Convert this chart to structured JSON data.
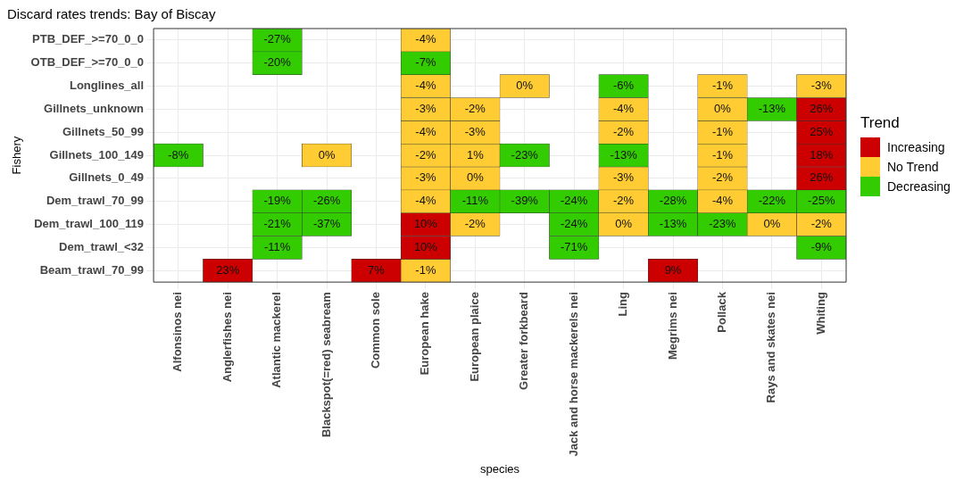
{
  "chart_data": {
    "type": "heatmap",
    "title": "Discard rates trends: Bay of Biscay",
    "xlabel": "species",
    "ylabel": "Fishery",
    "legend_title": "Trend",
    "legend": "right",
    "grid": true,
    "categories": [
      "Alfonsinos nei",
      "Anglerfishes nei",
      "Atlantic mackerel",
      "Blackspot(=red) seabream",
      "Common sole",
      "European hake",
      "European plaice",
      "Greater forkbeard",
      "Jack and horse mackerels nei",
      "Ling",
      "Megrims nei",
      "Pollack",
      "Rays and skates nei",
      "Whiting"
    ],
    "y_categories": [
      "PTB_DEF_>=70_0_0",
      "OTB_DEF_>=70_0_0",
      "Longlines_all",
      "Gillnets_unknown",
      "Gillnets_50_99",
      "Gillnets_100_149",
      "Gillnets_0_49",
      "Dem_trawl_70_99",
      "Dem_trawl_100_119",
      "Dem_trawl_<32",
      "Beam_trawl_70_99"
    ],
    "series": [
      {
        "name": "Increasing",
        "color": "#cc0000",
        "values": [
          null,
          null,
          null,
          null,
          null,
          null,
          null,
          null,
          null,
          null,
          null,
          null,
          null,
          null
        ]
      },
      {
        "name": "No Trend",
        "color": "#ffcc33",
        "values": [
          null,
          null,
          null,
          null,
          null,
          null,
          null,
          null,
          null,
          null,
          null,
          null,
          null,
          null
        ]
      },
      {
        "name": "Decreasing",
        "color": "#33cc00",
        "values": [
          null,
          null,
          null,
          null,
          null,
          null,
          null,
          null,
          null,
          null,
          null,
          null,
          null,
          null
        ]
      }
    ],
    "cells": [
      [
        null,
        null,
        -27,
        null,
        null,
        -4,
        null,
        null,
        null,
        null,
        null,
        null,
        null,
        null
      ],
      [
        null,
        null,
        -20,
        null,
        null,
        -7,
        null,
        null,
        null,
        null,
        null,
        null,
        null,
        null
      ],
      [
        null,
        null,
        null,
        null,
        null,
        -4,
        null,
        0,
        null,
        -6,
        null,
        -1,
        null,
        -3
      ],
      [
        null,
        null,
        null,
        null,
        null,
        -3,
        -2,
        null,
        null,
        -4,
        null,
        0,
        -13,
        26
      ],
      [
        null,
        null,
        null,
        null,
        null,
        -4,
        -3,
        null,
        null,
        -2,
        null,
        -1,
        null,
        25
      ],
      [
        -8,
        null,
        null,
        0,
        null,
        -2,
        1,
        -23,
        null,
        -13,
        null,
        -1,
        null,
        18
      ],
      [
        null,
        null,
        null,
        null,
        null,
        -3,
        0,
        null,
        null,
        -3,
        null,
        -2,
        null,
        26
      ],
      [
        null,
        null,
        -19,
        -26,
        null,
        -4,
        -11,
        -39,
        -24,
        -2,
        -28,
        -4,
        -22,
        -25
      ],
      [
        null,
        null,
        -21,
        -37,
        null,
        10,
        -2,
        null,
        -24,
        0,
        -13,
        -23,
        0,
        -2
      ],
      [
        null,
        null,
        -11,
        null,
        null,
        10,
        null,
        null,
        -71,
        null,
        null,
        null,
        null,
        -9
      ],
      [
        null,
        23,
        null,
        null,
        7,
        -1,
        null,
        null,
        null,
        null,
        9,
        null,
        null,
        null
      ]
    ],
    "cell_labels": [
      [
        null,
        null,
        "-27%",
        null,
        null,
        "-4%",
        null,
        null,
        null,
        null,
        null,
        null,
        null,
        null
      ],
      [
        null,
        null,
        "-20%",
        null,
        null,
        "-7%",
        null,
        null,
        null,
        null,
        null,
        null,
        null,
        null
      ],
      [
        null,
        null,
        null,
        null,
        null,
        "-4%",
        null,
        "0%",
        null,
        "-6%",
        null,
        "-1%",
        null,
        "-3%"
      ],
      [
        null,
        null,
        null,
        null,
        null,
        "-3%",
        "-2%",
        null,
        null,
        "-4%",
        null,
        "0%",
        "-13%",
        "26%"
      ],
      [
        null,
        null,
        null,
        null,
        null,
        "-4%",
        "-3%",
        null,
        null,
        "-2%",
        null,
        "-1%",
        null,
        "25%"
      ],
      [
        "-8%",
        null,
        null,
        "0%",
        null,
        "-2%",
        "1%",
        "-23%",
        null,
        "-13%",
        null,
        "-1%",
        null,
        "18%"
      ],
      [
        null,
        null,
        null,
        null,
        null,
        "-3%",
        "0%",
        null,
        null,
        "-3%",
        null,
        "-2%",
        null,
        "26%"
      ],
      [
        null,
        null,
        "-19%",
        "-26%",
        null,
        "-4%",
        "-11%",
        "-39%",
        "-24%",
        "-2%",
        "-28%",
        "-4%",
        "-22%",
        "-25%"
      ],
      [
        null,
        null,
        "-21%",
        "-37%",
        null,
        "10%",
        "-2%",
        null,
        "-24%",
        "0%",
        "-13%",
        "-23%",
        "0%",
        "-2%"
      ],
      [
        null,
        null,
        "-11%",
        null,
        null,
        "10%",
        null,
        null,
        "-71%",
        null,
        null,
        null,
        null,
        "-9%"
      ],
      [
        null,
        "23%",
        null,
        null,
        "7%",
        "-1%",
        null,
        null,
        null,
        null,
        "9%",
        null,
        null,
        null
      ]
    ],
    "colors": [
      [
        null,
        null,
        "#33cc00",
        null,
        null,
        "#ffcc33",
        null,
        null,
        null,
        null,
        null,
        null,
        null,
        null
      ],
      [
        null,
        null,
        "#33cc00",
        null,
        null,
        "#33cc00",
        null,
        null,
        null,
        null,
        null,
        null,
        null,
        null
      ],
      [
        null,
        null,
        null,
        null,
        null,
        "#ffcc33",
        null,
        "#ffcc33",
        null,
        "#33cc00",
        null,
        "#ffcc33",
        null,
        "#ffcc33"
      ],
      [
        null,
        null,
        null,
        null,
        null,
        "#ffcc33",
        "#ffcc33",
        null,
        null,
        "#ffcc33",
        null,
        "#ffcc33",
        "#33cc00",
        "#cc0000"
      ],
      [
        null,
        null,
        null,
        null,
        null,
        "#ffcc33",
        "#ffcc33",
        null,
        null,
        "#ffcc33",
        null,
        "#ffcc33",
        null,
        "#cc0000"
      ],
      [
        "#33cc00",
        null,
        null,
        "#ffcc33",
        null,
        "#ffcc33",
        "#ffcc33",
        "#33cc00",
        null,
        "#33cc00",
        null,
        "#ffcc33",
        null,
        "#cc0000"
      ],
      [
        null,
        null,
        null,
        null,
        null,
        "#ffcc33",
        "#ffcc33",
        null,
        null,
        "#ffcc33",
        null,
        "#ffcc33",
        null,
        "#cc0000"
      ],
      [
        null,
        null,
        "#33cc00",
        "#33cc00",
        null,
        "#ffcc33",
        "#33cc00",
        "#33cc00",
        "#33cc00",
        "#ffcc33",
        "#33cc00",
        "#ffcc33",
        "#33cc00",
        "#33cc00"
      ],
      [
        null,
        null,
        "#33cc00",
        "#33cc00",
        null,
        "#cc0000",
        "#ffcc33",
        null,
        "#33cc00",
        "#ffcc33",
        "#33cc00",
        "#33cc00",
        "#ffcc33",
        "#ffcc33"
      ],
      [
        null,
        null,
        "#33cc00",
        null,
        null,
        "#cc0000",
        null,
        null,
        "#33cc00",
        null,
        null,
        null,
        null,
        "#33cc00"
      ],
      [
        null,
        "#cc0000",
        null,
        null,
        "#cc0000",
        "#ffcc33",
        null,
        null,
        null,
        null,
        "#cc0000",
        null,
        null,
        null
      ]
    ]
  }
}
